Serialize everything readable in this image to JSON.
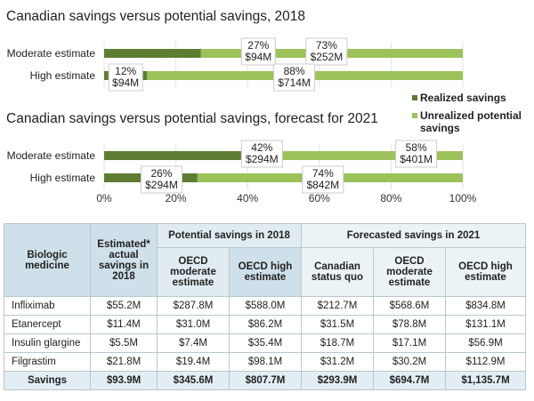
{
  "chart_data": [
    {
      "type": "bar",
      "stacked": true,
      "orientation": "horizontal",
      "title": "Canadian savings versus potential savings, 2018",
      "categories": [
        "Moderate estimate",
        "High estimate"
      ],
      "series": [
        {
          "name": "Realized savings",
          "color": "#5e7d32",
          "values": [
            27,
            12
          ],
          "labels": [
            "27%\n$94M",
            "12%\n$94M"
          ]
        },
        {
          "name": "Unrealized potential savings",
          "color": "#9cc25a",
          "values": [
            73,
            88
          ],
          "labels": [
            "73%\n$252M",
            "88%\n$714M"
          ]
        }
      ],
      "xlim": [
        0,
        100
      ],
      "xticks": [],
      "grid": true
    },
    {
      "type": "bar",
      "stacked": true,
      "orientation": "horizontal",
      "title": "Canadian savings versus potential savings, forecast for 2021",
      "categories": [
        "Moderate estimate",
        "High estimate"
      ],
      "series": [
        {
          "name": "Realized savings",
          "color": "#5e7d32",
          "values": [
            42,
            26
          ],
          "labels": [
            "42%\n$294M",
            "26%\n$294M"
          ]
        },
        {
          "name": "Unrealized potential savings",
          "color": "#9cc25a",
          "values": [
            58,
            74
          ],
          "labels": [
            "58%\n$401M",
            "74%\n$842M"
          ]
        }
      ],
      "xlim": [
        0,
        100
      ],
      "xticks": [
        "0%",
        "20%",
        "40%",
        "60%",
        "80%",
        "100%"
      ],
      "grid": true
    }
  ],
  "legend": {
    "placement": "right",
    "items": [
      {
        "label": "Realized savings",
        "color": "#5e7d32"
      },
      {
        "label": "Unrealized potential savings",
        "color": "#9cc25a"
      }
    ]
  },
  "table": {
    "headers": {
      "medicine": "Biologic medicine",
      "actual": "Estimated* actual savings in 2018",
      "group_2018": "Potential savings in 2018",
      "group_2021": "Forecasted savings in 2021",
      "oecd_mod_2018": "OECD moderate estimate",
      "oecd_high_2018": "OECD high estimate",
      "canadian_sq": "Canadian status quo",
      "oecd_mod_2021": "OECD moderate estimate",
      "oecd_high_2021": "OECD high estimate"
    },
    "rows": [
      [
        "Infliximab",
        "$55.2M",
        "$287.8M",
        "$588.0M",
        "$212.7M",
        "$568.6M",
        "$834.8M"
      ],
      [
        "Etanercept",
        "$11.4M",
        "$31.0M",
        "$86.2M",
        "$31.5M",
        "$78.8M",
        "$131.1M"
      ],
      [
        "Insulin glargine",
        "$5.5M",
        "$7.4M",
        "$35.4M",
        "$18.7M",
        "$17.1M",
        "$56.9M"
      ],
      [
        "Filgrastim",
        "$21.8M",
        "$19.4M",
        "$98.1M",
        "$31.2M",
        "$30.2M",
        "$112.9M"
      ]
    ],
    "total": [
      "Savings",
      "$93.9M",
      "$345.6M",
      "$807.7M",
      "$293.9M",
      "$694.7M",
      "$1,135.7M"
    ]
  }
}
